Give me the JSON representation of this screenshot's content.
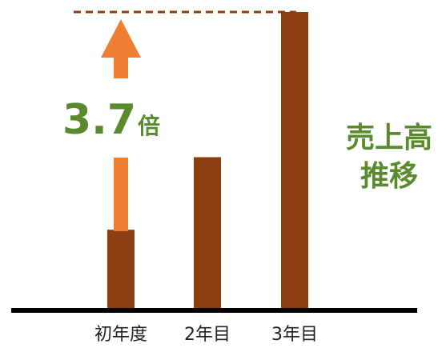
{
  "colors": {
    "bar": "#8B3E0F",
    "arrow": "#EE7F33",
    "text_green": "#5A8A2E",
    "baseline": "#000000",
    "label": "#222222"
  },
  "chart_data": {
    "type": "bar",
    "categories": [
      "初年度",
      "2年目",
      "3年目"
    ],
    "values": [
      1.0,
      1.9,
      3.7
    ],
    "ylim": [
      0,
      3.7
    ],
    "grid": false,
    "legend": "none",
    "annotation": {
      "multiplier": "3.7",
      "multiplier_unit": "倍",
      "arrow_from_category": "初年度",
      "arrow_to_category": "3年目"
    },
    "side_title_lines": [
      "売上高",
      "推移"
    ]
  }
}
